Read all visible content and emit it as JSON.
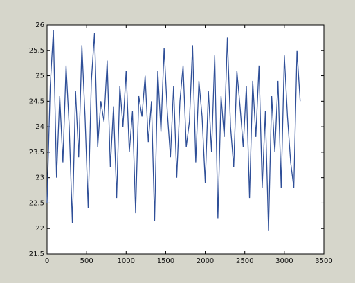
{
  "chart_data": {
    "type": "line",
    "x": [
      0,
      40,
      80,
      120,
      160,
      200,
      240,
      280,
      320,
      360,
      400,
      440,
      480,
      520,
      560,
      600,
      640,
      680,
      720,
      760,
      800,
      840,
      880,
      920,
      960,
      1000,
      1040,
      1080,
      1120,
      1160,
      1200,
      1240,
      1280,
      1320,
      1360,
      1400,
      1440,
      1480,
      1520,
      1560,
      1600,
      1640,
      1680,
      1720,
      1760,
      1800,
      1840,
      1880,
      1920,
      1960,
      2000,
      2040,
      2080,
      2120,
      2160,
      2200,
      2240,
      2280,
      2320,
      2360,
      2400,
      2440,
      2480,
      2520,
      2560,
      2600,
      2640,
      2680,
      2720,
      2760,
      2800,
      2840,
      2880,
      2920,
      2960,
      3000,
      3040,
      3080,
      3120,
      3160,
      3200
    ],
    "series": [
      {
        "color": "#2f4f98",
        "values": [
          22.5,
          24.8,
          25.9,
          23.0,
          24.6,
          23.3,
          25.2,
          24.0,
          22.1,
          24.7,
          23.4,
          25.6,
          24.2,
          22.4,
          24.9,
          25.85,
          23.6,
          24.5,
          24.1,
          25.3,
          23.2,
          24.4,
          22.6,
          24.8,
          24.0,
          25.1,
          23.5,
          24.3,
          22.3,
          24.6,
          24.2,
          25.0,
          23.7,
          24.5,
          22.15,
          25.1,
          23.9,
          25.55,
          24.3,
          23.4,
          24.8,
          23.0,
          24.5,
          25.2,
          23.6,
          24.1,
          25.6,
          23.3,
          24.9,
          24.2,
          22.9,
          24.7,
          23.5,
          25.4,
          22.2,
          24.6,
          23.8,
          25.75,
          24.0,
          23.2,
          25.1,
          24.4,
          23.6,
          24.8,
          22.6,
          24.9,
          23.8,
          25.2,
          22.8,
          24.3,
          21.95,
          24.6,
          23.5,
          24.9,
          22.8,
          25.4,
          24.2,
          23.3,
          22.8,
          25.5,
          24.5
        ]
      }
    ],
    "xlim": [
      0,
      3500
    ],
    "xticks": [
      0,
      500,
      1000,
      1500,
      2000,
      2500,
      3000,
      3500
    ],
    "ylim": [
      21.5,
      26
    ],
    "yticks": [
      21.5,
      22,
      22.5,
      23,
      23.5,
      24,
      24.5,
      25,
      25.5,
      26
    ]
  }
}
